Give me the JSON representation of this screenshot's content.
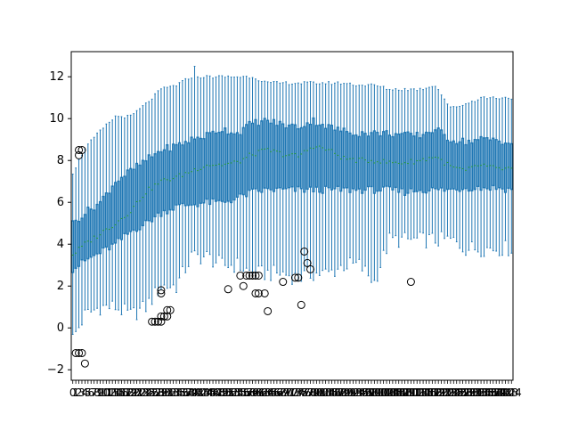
{
  "chart_data": {
    "type": "boxplot",
    "title": "",
    "xlabel": "",
    "ylabel": "",
    "n_boxes": 145,
    "xlim": [
      0.5,
      145.5
    ],
    "ylim": [
      -2.5,
      13.2
    ],
    "y_ticks": [
      -2,
      0,
      2,
      4,
      6,
      8,
      10,
      12
    ],
    "x_tick_labels_note": "one integer tick label per box (1..145); labels are densely overlapped and illegible",
    "x_tick_label_samples": [
      "0",
      "2",
      "5",
      "9"
    ],
    "box_color": "#1f77b4",
    "median_color": "#2ca02c",
    "outlier_color": "#000000",
    "envelope": {
      "x": [
        1,
        5,
        10,
        15,
        20,
        25,
        30,
        35,
        40,
        45,
        50,
        55,
        60,
        65,
        70,
        75,
        80,
        85,
        90,
        95,
        100,
        105,
        110,
        115,
        120,
        125,
        130,
        135,
        140,
        145
      ],
      "whisker_low": [
        -0.5,
        0.6,
        1.0,
        1.0,
        0.6,
        1.0,
        2.0,
        2.0,
        3.4,
        3.4,
        3.0,
        3.0,
        2.6,
        2.6,
        2.6,
        2.4,
        2.6,
        2.6,
        3.0,
        3.0,
        2.2,
        4.2,
        4.2,
        4.2,
        4.2,
        4.2,
        3.8,
        3.8,
        3.8,
        3.8
      ],
      "q1": [
        2.8,
        3.2,
        3.6,
        4.0,
        4.6,
        5.0,
        5.5,
        5.8,
        5.9,
        6.0,
        6.0,
        6.2,
        6.5,
        6.6,
        6.6,
        6.6,
        6.6,
        6.6,
        6.6,
        6.6,
        6.6,
        6.6,
        6.5,
        6.6,
        6.6,
        6.6,
        6.7,
        6.7,
        6.7,
        6.6
      ],
      "median": [
        3.5,
        4.0,
        4.5,
        5.0,
        5.6,
        6.5,
        7.0,
        7.2,
        7.5,
        7.8,
        7.8,
        7.9,
        8.3,
        8.5,
        8.3,
        8.2,
        8.7,
        8.5,
        8.1,
        8.0,
        8.0,
        7.9,
        7.9,
        8.0,
        8.2,
        7.7,
        7.5,
        7.8,
        7.6,
        7.6
      ],
      "q3": [
        5.0,
        5.5,
        6.0,
        7.0,
        7.5,
        8.0,
        8.5,
        8.7,
        9.0,
        9.2,
        9.5,
        9.3,
        9.8,
        9.9,
        9.7,
        9.6,
        9.9,
        9.6,
        9.4,
        9.3,
        9.3,
        9.3,
        9.2,
        9.2,
        9.5,
        9.0,
        8.9,
        9.0,
        9.0,
        8.8
      ],
      "whisker_high": [
        7.4,
        8.6,
        9.4,
        10.1,
        10.1,
        10.7,
        11.4,
        11.6,
        12.0,
        12.0,
        12.0,
        12.0,
        12.0,
        11.7,
        11.7,
        11.7,
        11.7,
        11.7,
        11.7,
        11.6,
        11.6,
        11.4,
        11.4,
        11.4,
        11.6,
        10.5,
        10.7,
        11.0,
        11.0,
        11.0
      ]
    },
    "outliers": [
      {
        "x": 2,
        "y": -1.2
      },
      {
        "x": 3,
        "y": -1.2
      },
      {
        "x": 4,
        "y": -1.2
      },
      {
        "x": 5,
        "y": -1.7
      },
      {
        "x": 3,
        "y": 8.25
      },
      {
        "x": 3,
        "y": 8.5
      },
      {
        "x": 4,
        "y": 8.5
      },
      {
        "x": 27,
        "y": 0.3
      },
      {
        "x": 28,
        "y": 0.3
      },
      {
        "x": 29,
        "y": 0.3
      },
      {
        "x": 30,
        "y": 0.3
      },
      {
        "x": 30,
        "y": 0.55
      },
      {
        "x": 31,
        "y": 0.55
      },
      {
        "x": 32,
        "y": 0.55
      },
      {
        "x": 32,
        "y": 0.85
      },
      {
        "x": 33,
        "y": 0.85
      },
      {
        "x": 30,
        "y": 1.65
      },
      {
        "x": 30,
        "y": 1.8
      },
      {
        "x": 52,
        "y": 1.85
      },
      {
        "x": 56,
        "y": 2.5
      },
      {
        "x": 57,
        "y": 2.0
      },
      {
        "x": 58,
        "y": 2.5
      },
      {
        "x": 59,
        "y": 2.5
      },
      {
        "x": 60,
        "y": 2.5
      },
      {
        "x": 61,
        "y": 2.5
      },
      {
        "x": 62,
        "y": 2.5
      },
      {
        "x": 61,
        "y": 1.65
      },
      {
        "x": 62,
        "y": 1.65
      },
      {
        "x": 64,
        "y": 1.65
      },
      {
        "x": 65,
        "y": 0.8
      },
      {
        "x": 70,
        "y": 2.2
      },
      {
        "x": 74,
        "y": 2.4
      },
      {
        "x": 75,
        "y": 2.4
      },
      {
        "x": 76,
        "y": 1.1
      },
      {
        "x": 77,
        "y": 3.65
      },
      {
        "x": 78,
        "y": 3.1
      },
      {
        "x": 79,
        "y": 2.8
      },
      {
        "x": 112,
        "y": 2.2
      }
    ]
  }
}
